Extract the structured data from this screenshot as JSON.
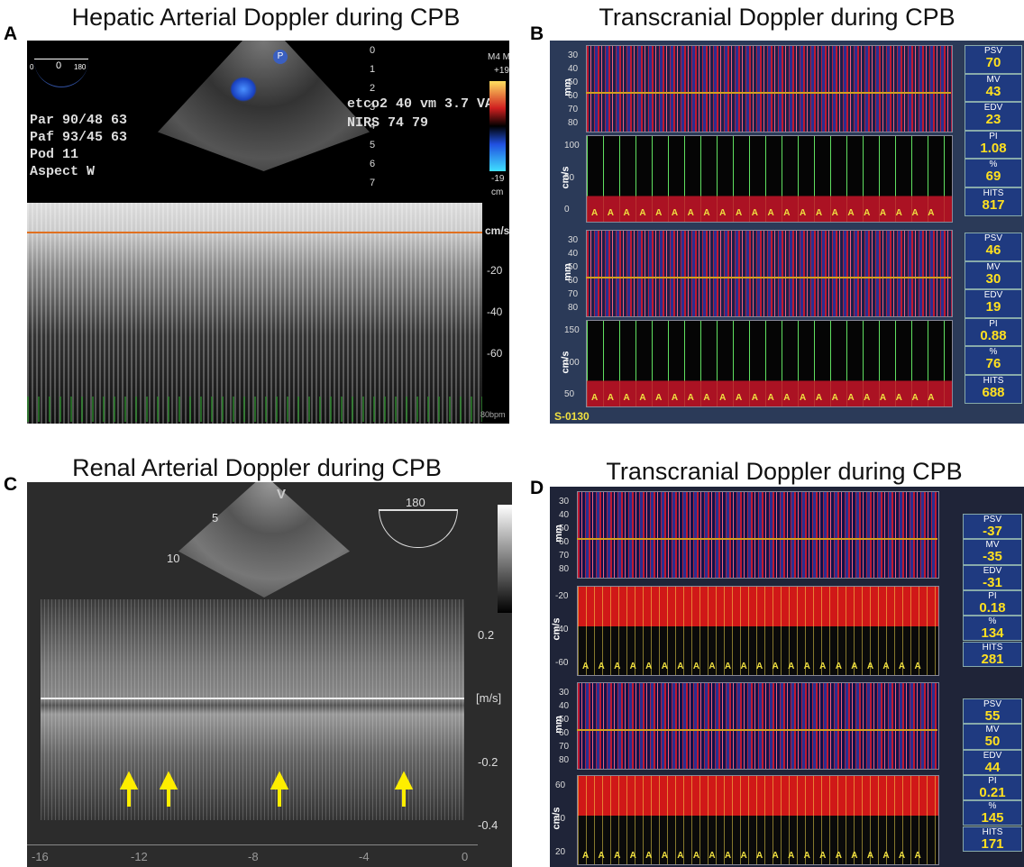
{
  "panels": [
    {
      "label": "A",
      "title": "Hepatic Arterial Doppler during CPB",
      "probe_angle": [
        "0",
        "0",
        "180"
      ],
      "badge": "P",
      "patient_info": [
        "Par 90/48 63",
        "Paf 93/45 63",
        "Pod 11",
        "Aspect W"
      ],
      "monitor_info": [
        "etco2 40 vm 3.7 VA",
        "NIRS 74 79"
      ],
      "depth_scale": [
        "0",
        "1",
        "2",
        "3",
        "4",
        "5",
        "6",
        "7"
      ],
      "color_bar": [
        "M4 M",
        "+19",
        "-19",
        "cm"
      ],
      "velocity_unit": "cm/s",
      "velocity_scale": [
        "-20",
        "-40",
        "-60"
      ],
      "footer": "80bpm"
    },
    {
      "label": "B",
      "title": "Transcranial Doppler during CPB",
      "depth_unit": "mm",
      "velocity_unit": "cm/s",
      "depth_scale": [
        "30",
        "40",
        "50",
        "60",
        "70",
        "80"
      ],
      "velocity_scale_1": [
        "100",
        "50",
        "0"
      ],
      "velocity_scale_2": [
        "150",
        "100",
        "50"
      ],
      "emboli_marker": "A",
      "recording_id": "S-0130",
      "channels": [
        {
          "metrics": [
            {
              "name": "PSV",
              "value": "70"
            },
            {
              "name": "MV",
              "value": "43"
            },
            {
              "name": "EDV",
              "value": "23"
            },
            {
              "name": "PI",
              "value": "1.08"
            },
            {
              "name": "%",
              "value": "69"
            },
            {
              "name": "HITS",
              "value": "817"
            }
          ]
        },
        {
          "metrics": [
            {
              "name": "PSV",
              "value": "46"
            },
            {
              "name": "MV",
              "value": "30"
            },
            {
              "name": "EDV",
              "value": "19"
            },
            {
              "name": "PI",
              "value": "0.88"
            },
            {
              "name": "%",
              "value": "76"
            },
            {
              "name": "HITS",
              "value": "688"
            }
          ]
        }
      ]
    },
    {
      "label": "C",
      "title": "Renal Arterial Doppler during CPB",
      "depth_scale": [
        "5",
        "10"
      ],
      "probe_mark": "V",
      "angle": "180",
      "velocity_unit": "[m/s]",
      "velocity_scale": [
        "0.2",
        "-0.2",
        "-0.4"
      ],
      "time_scale": [
        "-16",
        "-12",
        "-8",
        "-4",
        "0"
      ]
    },
    {
      "label": "D",
      "title": "Transcranial Doppler during CPB",
      "depth_unit": "mm",
      "velocity_unit": "cm/s",
      "depth_scale": [
        "30",
        "40",
        "50",
        "60",
        "70",
        "80"
      ],
      "velocity_scale_1": [
        "-20",
        "-40",
        "-60"
      ],
      "velocity_scale_2": [
        "60",
        "40",
        "20"
      ],
      "emboli_marker": "A",
      "channels": [
        {
          "metrics": [
            {
              "name": "PSV",
              "value": "-37"
            },
            {
              "name": "MV",
              "value": "-35"
            },
            {
              "name": "EDV",
              "value": "-31"
            },
            {
              "name": "PI",
              "value": "0.18"
            },
            {
              "name": "%",
              "value": "134"
            },
            {
              "name": "HITS",
              "value": "281"
            }
          ]
        },
        {
          "metrics": [
            {
              "name": "PSV",
              "value": "55"
            },
            {
              "name": "MV",
              "value": "50"
            },
            {
              "name": "EDV",
              "value": "44"
            },
            {
              "name": "PI",
              "value": "0.21"
            },
            {
              "name": "%",
              "value": "145"
            },
            {
              "name": "HITS",
              "value": "171"
            }
          ]
        }
      ]
    }
  ]
}
